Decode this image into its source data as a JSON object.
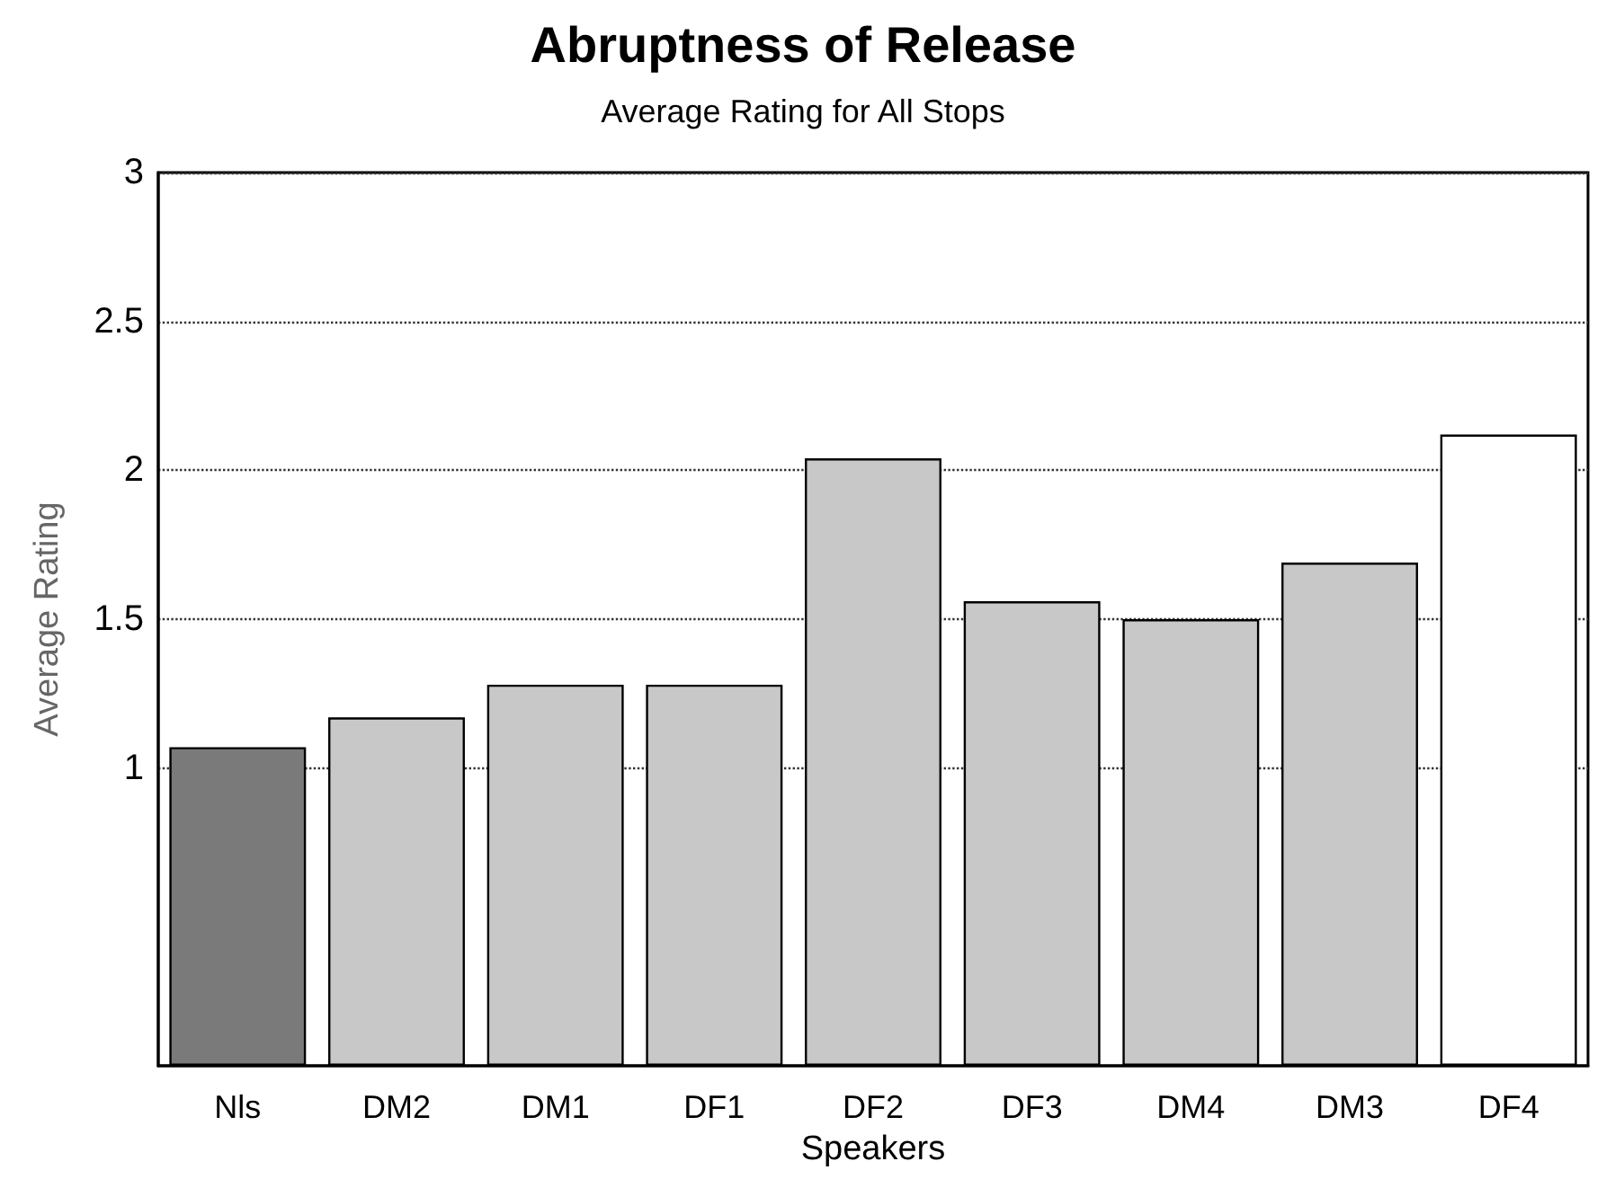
{
  "chart_data": {
    "type": "bar",
    "title": "Abruptness of Release",
    "subtitle": "Average Rating for All Stops",
    "xlabel": "Speakers",
    "ylabel": "Average Rating",
    "categories": [
      "Nls",
      "DM2",
      "DM1",
      "DF1",
      "DF2",
      "DF3",
      "DM4",
      "DM3",
      "DF4"
    ],
    "values": [
      1.07,
      1.17,
      1.28,
      1.28,
      2.04,
      1.56,
      1.5,
      1.69,
      2.12
    ],
    "colors": [
      "#7a7a7a",
      "#c8c8c8",
      "#c8c8c8",
      "#c8c8c8",
      "#c8c8c8",
      "#c8c8c8",
      "#c8c8c8",
      "#c8c8c8",
      "#ffffff"
    ],
    "ylim": [
      0,
      3
    ],
    "yticks": [
      1,
      1.5,
      2,
      2.5,
      3
    ],
    "grid": "y"
  }
}
